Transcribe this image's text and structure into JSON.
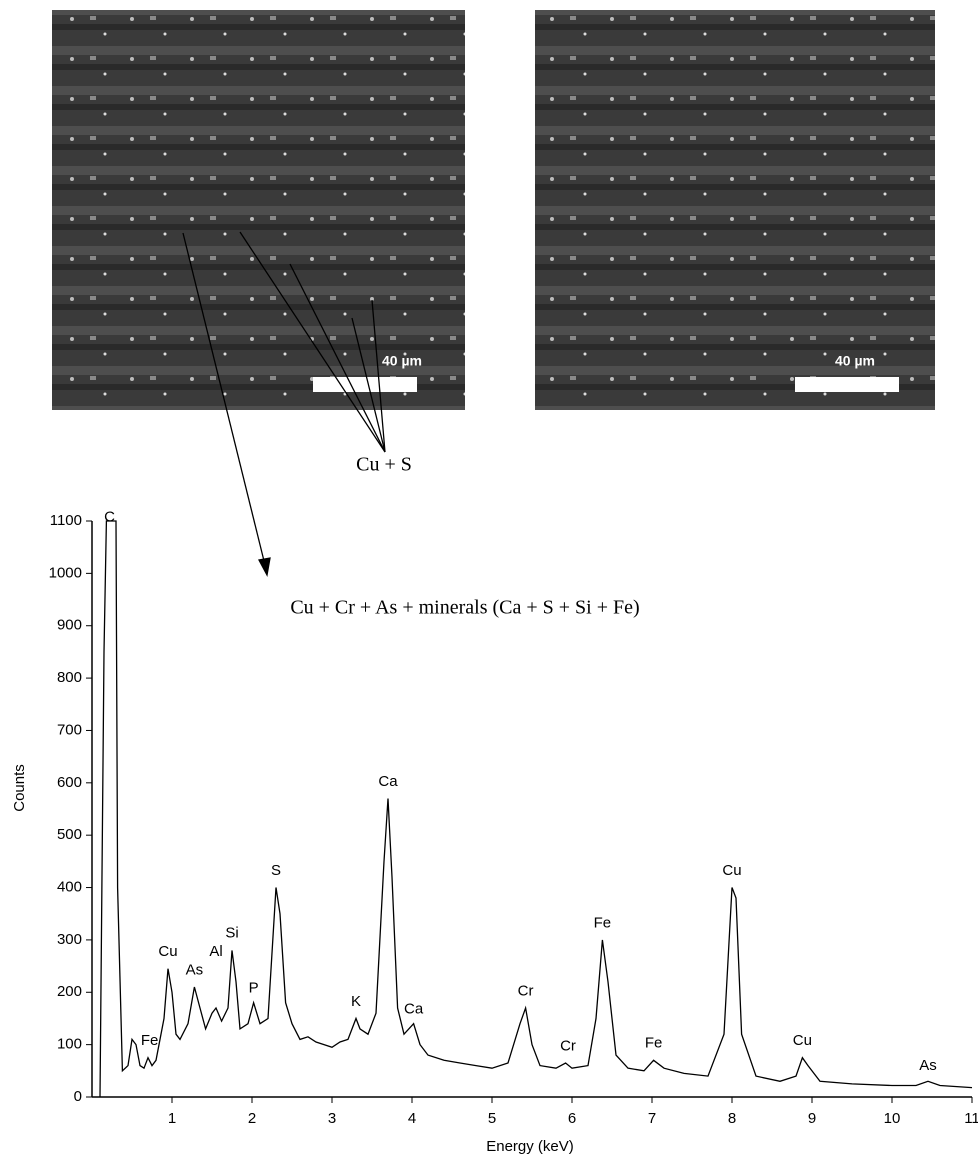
{
  "images": [
    {
      "scale_label": "40 µm"
    },
    {
      "scale_label": "40 µm"
    }
  ],
  "annotations": {
    "top": "Cu + S",
    "spectrum": "Cu + Cr + As + minerals (Ca + S + Si + Fe)"
  },
  "chart_data": {
    "type": "line",
    "x_label": "Energy (keV)",
    "y_label": "Counts",
    "color": "#000000",
    "xlim": [
      0,
      11
    ],
    "xticks": [
      1,
      2,
      3,
      4,
      5,
      6,
      7,
      8,
      9,
      10,
      11
    ],
    "ylim": [
      0,
      1100
    ],
    "yticks": [
      0,
      100,
      200,
      300,
      400,
      500,
      600,
      700,
      800,
      900,
      1000,
      1100
    ],
    "x": [
      0.1,
      0.15,
      0.18,
      0.2,
      0.3,
      0.32,
      0.38,
      0.45,
      0.5,
      0.55,
      0.6,
      0.65,
      0.7,
      0.75,
      0.8,
      0.9,
      0.95,
      1.0,
      1.05,
      1.1,
      1.2,
      1.28,
      1.35,
      1.42,
      1.5,
      1.55,
      1.62,
      1.7,
      1.75,
      1.8,
      1.85,
      1.95,
      2.02,
      2.1,
      2.2,
      2.3,
      2.35,
      2.42,
      2.5,
      2.6,
      2.7,
      2.8,
      2.9,
      3.0,
      3.1,
      3.2,
      3.3,
      3.35,
      3.45,
      3.55,
      3.65,
      3.7,
      3.75,
      3.82,
      3.9,
      4.02,
      4.1,
      4.2,
      4.4,
      4.6,
      4.8,
      5.0,
      5.2,
      5.35,
      5.42,
      5.5,
      5.6,
      5.8,
      5.92,
      6.0,
      6.2,
      6.3,
      6.38,
      6.45,
      6.55,
      6.7,
      6.9,
      7.02,
      7.15,
      7.4,
      7.7,
      7.9,
      8.0,
      8.05,
      8.12,
      8.3,
      8.6,
      8.8,
      8.88,
      8.95,
      9.1,
      9.5,
      10.0,
      10.3,
      10.45,
      10.6,
      11.0
    ],
    "values": [
      0,
      850,
      1100,
      1100,
      1100,
      400,
      50,
      60,
      110,
      100,
      60,
      55,
      75,
      60,
      70,
      150,
      245,
      200,
      120,
      110,
      140,
      210,
      170,
      130,
      160,
      170,
      145,
      170,
      280,
      220,
      130,
      140,
      180,
      140,
      150,
      400,
      350,
      180,
      140,
      110,
      115,
      105,
      100,
      95,
      105,
      110,
      150,
      130,
      120,
      160,
      450,
      570,
      420,
      170,
      120,
      140,
      100,
      80,
      70,
      65,
      60,
      55,
      65,
      140,
      170,
      100,
      60,
      55,
      65,
      55,
      60,
      150,
      300,
      220,
      80,
      55,
      50,
      70,
      55,
      45,
      40,
      120,
      400,
      380,
      120,
      40,
      30,
      40,
      75,
      60,
      30,
      25,
      22,
      22,
      30,
      22,
      18
    ],
    "peaks": [
      {
        "label": "C",
        "x": 0.22,
        "y": 1080
      },
      {
        "label": "Fe",
        "x": 0.72,
        "y": 80
      },
      {
        "label": "Cu",
        "x": 0.95,
        "y": 250
      },
      {
        "label": "As",
        "x": 1.28,
        "y": 215
      },
      {
        "label": "Al",
        "x": 1.55,
        "y": 250
      },
      {
        "label": "Si",
        "x": 1.75,
        "y": 285
      },
      {
        "label": "P",
        "x": 2.02,
        "y": 180
      },
      {
        "label": "S",
        "x": 2.3,
        "y": 405
      },
      {
        "label": "K",
        "x": 3.3,
        "y": 155
      },
      {
        "label": "Ca",
        "x": 3.7,
        "y": 575
      },
      {
        "label": "Ca",
        "x": 4.02,
        "y": 140
      },
      {
        "label": "Cr",
        "x": 5.42,
        "y": 175
      },
      {
        "label": "Cr",
        "x": 5.95,
        "y": 70
      },
      {
        "label": "Fe",
        "x": 6.38,
        "y": 305
      },
      {
        "label": "Fe",
        "x": 7.02,
        "y": 75
      },
      {
        "label": "Cu",
        "x": 8.0,
        "y": 405
      },
      {
        "label": "Cu",
        "x": 8.88,
        "y": 80
      },
      {
        "label": "As",
        "x": 10.45,
        "y": 32
      }
    ]
  }
}
